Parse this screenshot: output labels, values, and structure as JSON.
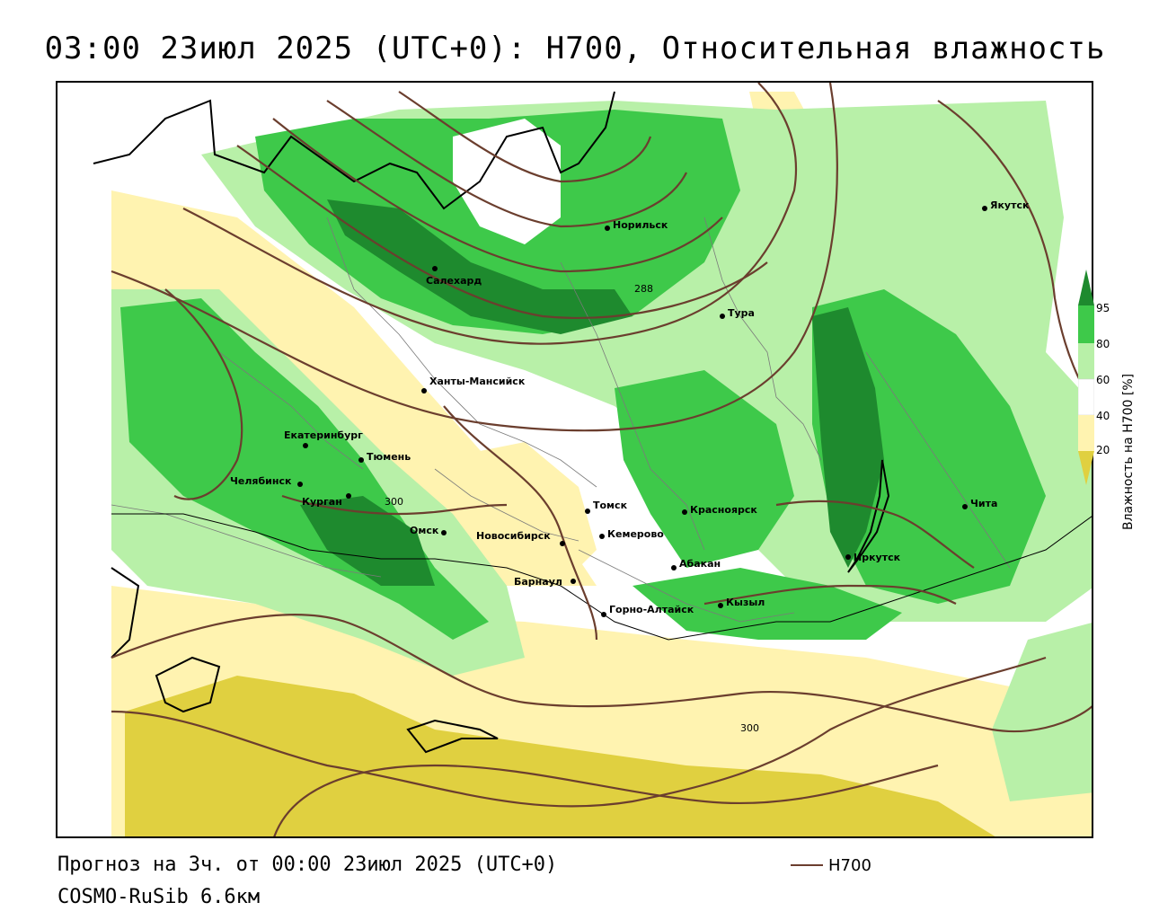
{
  "title": "03:00 23июл 2025 (UTC+0): H700, Относительная влажность",
  "footer": {
    "forecast": "Прогноз на 3ч. от 00:00 23июл 2025 (UTC+0)",
    "model": "COSMO-RuSib 6.6км"
  },
  "legend": {
    "line_label": "H700",
    "line_color": "#6b3e2e"
  },
  "colorbar": {
    "title": "Влажность на H700 [%]",
    "ticks": [
      "95",
      "80",
      "60",
      "40",
      "20"
    ],
    "colors": {
      "very_wet": "#1e8a2e",
      "wet": "#3ec94a",
      "moist": "#b8f0a8",
      "neutral": "#ffffff",
      "dry": "#fff3b0",
      "very_dry": "#e0d040"
    }
  },
  "cities": [
    {
      "name": "Якутск"
    },
    {
      "name": "Норильск"
    },
    {
      "name": "Салехард"
    },
    {
      "name": "Тура"
    },
    {
      "name": "Ханты-Мансийск"
    },
    {
      "name": "Екатеринбург"
    },
    {
      "name": "Тюмень"
    },
    {
      "name": "Челябинск"
    },
    {
      "name": "Курган"
    },
    {
      "name": "Омск"
    },
    {
      "name": "Новосибирск"
    },
    {
      "name": "Томск"
    },
    {
      "name": "Кемерово"
    },
    {
      "name": "Красноярск"
    },
    {
      "name": "Барнаул"
    },
    {
      "name": "Абакан"
    },
    {
      "name": "Кызыл"
    },
    {
      "name": "Горно-Алтайск"
    },
    {
      "name": "Иркутск"
    },
    {
      "name": "Чита"
    }
  ],
  "contour_labels": [
    "288",
    "300",
    "300"
  ]
}
